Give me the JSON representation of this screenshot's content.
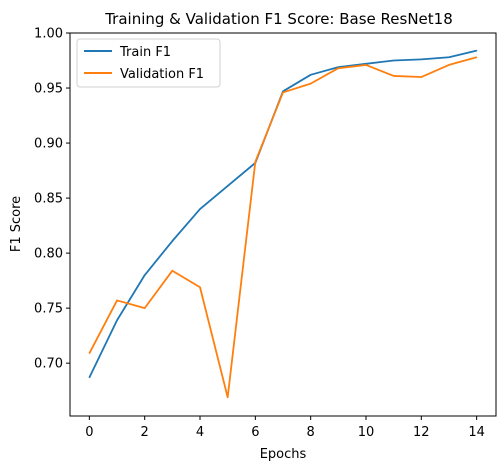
{
  "chart_data": {
    "type": "line",
    "title": "Training & Validation F1 Score: Base ResNet18",
    "xlabel": "Epochs",
    "ylabel": "F1 Score",
    "xlim": [
      -0.7,
      14.7
    ],
    "ylim": [
      0.652,
      1.0
    ],
    "xticks": [
      0,
      2,
      4,
      6,
      8,
      10,
      12,
      14
    ],
    "yticks": [
      0.7,
      0.75,
      0.8,
      0.85,
      0.9,
      0.95,
      1.0
    ],
    "ytick_labels": [
      "0.70",
      "0.75",
      "0.80",
      "0.85",
      "0.90",
      "0.95",
      "1.00"
    ],
    "grid": false,
    "legend_position": "top-left",
    "x": [
      0,
      1,
      2,
      3,
      4,
      5,
      6,
      7,
      8,
      9,
      10,
      11,
      12,
      13,
      14
    ],
    "series": [
      {
        "name": "Train F1",
        "color": "#1f77b4",
        "values": [
          0.687,
          0.739,
          0.78,
          0.811,
          0.84,
          0.861,
          0.882,
          0.947,
          0.962,
          0.969,
          0.972,
          0.975,
          0.976,
          0.978,
          0.984
        ]
      },
      {
        "name": "Validation F1",
        "color": "#ff7f0e",
        "values": [
          0.709,
          0.757,
          0.75,
          0.784,
          0.769,
          0.669,
          0.883,
          0.946,
          0.954,
          0.968,
          0.971,
          0.961,
          0.96,
          0.971,
          0.978
        ]
      }
    ]
  }
}
